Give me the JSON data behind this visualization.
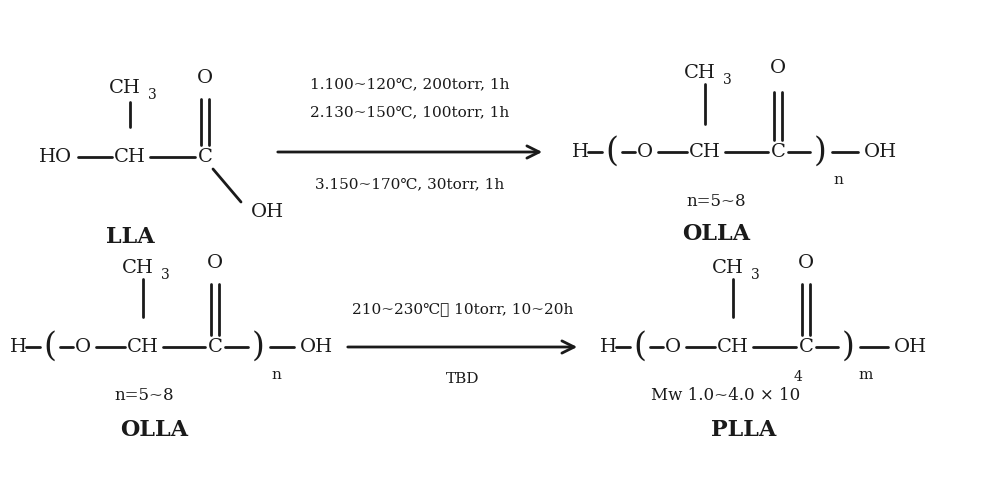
{
  "bg_color": "#ffffff",
  "text_color": "#1a1a1a",
  "fig_width": 10.0,
  "fig_height": 4.92,
  "dpi": 100,
  "row1_conditions": [
    "1.100~120℃, 200torr, 1h",
    "2.130~150℃, 100torr, 1h",
    "3.150~170℃, 30torr, 1h"
  ],
  "row2_cond_above": "210~230℃， 10torr, 10~20h",
  "row2_cond_below": "TBD",
  "label_LLA": "LLA",
  "label_OLLA": "OLLA",
  "label_PLLA": "PLLA",
  "note_row1": "n=5~8",
  "note_row2_prefix": "Mw 1.0~4.0 × 10",
  "note_row2_sup": "4"
}
